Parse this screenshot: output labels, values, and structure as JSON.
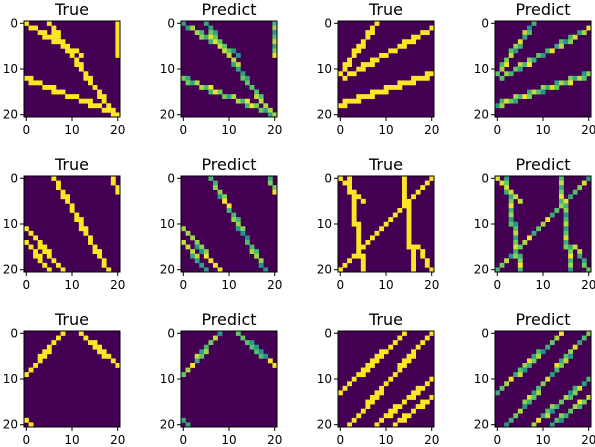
{
  "figure": {
    "colormap": "viridis",
    "colors": {
      "low": "#440154",
      "high": "#fde725"
    },
    "axis_ticks": [
      "0",
      "10",
      "20"
    ],
    "grid_size": 21,
    "panels": [
      {
        "title": "True",
        "kind": "true",
        "lines": [
          {
            "r0": 0,
            "c0": 0,
            "r1": 7,
            "c1": 12
          },
          {
            "r0": 0,
            "c0": 5,
            "r1": 18,
            "c1": 18
          },
          {
            "r0": 12,
            "c0": 0,
            "r1": 20,
            "c1": 20
          },
          {
            "r0": 0,
            "c0": 20,
            "r1": 7,
            "c1": 20
          }
        ]
      },
      {
        "title": "Predict",
        "kind": "predict",
        "lines": [
          {
            "r0": 0,
            "c0": 0,
            "r1": 7,
            "c1": 12
          },
          {
            "r0": 0,
            "c0": 5,
            "r1": 18,
            "c1": 18
          },
          {
            "r0": 12,
            "c0": 0,
            "r1": 20,
            "c1": 20
          },
          {
            "r0": 0,
            "c0": 20,
            "r1": 7,
            "c1": 20
          }
        ]
      },
      {
        "title": "True",
        "kind": "true",
        "lines": [
          {
            "r0": 0,
            "c0": 8,
            "r1": 11,
            "c1": 0
          },
          {
            "r0": 1,
            "c0": 20,
            "r1": 12,
            "c1": 1
          },
          {
            "r0": 18,
            "c0": 0,
            "r1": 11,
            "c1": 20
          }
        ]
      },
      {
        "title": "Predict",
        "kind": "predict",
        "lines": [
          {
            "r0": 0,
            "c0": 8,
            "r1": 11,
            "c1": 0
          },
          {
            "r0": 1,
            "c0": 20,
            "r1": 12,
            "c1": 1
          },
          {
            "r0": 18,
            "c0": 0,
            "r1": 11,
            "c1": 20
          }
        ]
      },
      {
        "title": "True",
        "kind": "true",
        "lines": [
          {
            "r0": 0,
            "c0": 6,
            "r1": 20,
            "c1": 18
          },
          {
            "r0": 11,
            "c0": 0,
            "r1": 20,
            "c1": 8
          },
          {
            "r0": 14,
            "c0": 0,
            "r1": 20,
            "c1": 5
          },
          {
            "r0": 0,
            "c0": 19,
            "r1": 3,
            "c1": 20
          }
        ]
      },
      {
        "title": "Predict",
        "kind": "predict",
        "lines": [
          {
            "r0": 0,
            "c0": 6,
            "r1": 20,
            "c1": 18
          },
          {
            "r0": 11,
            "c0": 0,
            "r1": 20,
            "c1": 8
          },
          {
            "r0": 14,
            "c0": 0,
            "r1": 20,
            "c1": 5
          },
          {
            "r0": 0,
            "c0": 19,
            "r1": 3,
            "c1": 20
          }
        ]
      },
      {
        "title": "True",
        "kind": "true",
        "lines": [
          {
            "r0": 0,
            "c0": 2,
            "r1": 20,
            "c1": 5
          },
          {
            "r0": 0,
            "c0": 14,
            "r1": 20,
            "c1": 16
          },
          {
            "r0": 20,
            "c0": 0,
            "r1": 0,
            "c1": 20
          },
          {
            "r0": 0,
            "c0": 0,
            "r1": 5,
            "c1": 5
          },
          {
            "r0": 15,
            "c0": 17,
            "r1": 20,
            "c1": 20
          }
        ]
      },
      {
        "title": "Predict",
        "kind": "predict",
        "lines": [
          {
            "r0": 0,
            "c0": 2,
            "r1": 20,
            "c1": 5
          },
          {
            "r0": 0,
            "c0": 14,
            "r1": 20,
            "c1": 16
          },
          {
            "r0": 20,
            "c0": 0,
            "r1": 0,
            "c1": 20
          },
          {
            "r0": 0,
            "c0": 0,
            "r1": 5,
            "c1": 5
          },
          {
            "r0": 15,
            "c0": 17,
            "r1": 20,
            "c1": 20
          }
        ]
      },
      {
        "title": "True",
        "kind": "true",
        "lines": [
          {
            "r0": 0,
            "c0": 8,
            "r1": 9,
            "c1": 0
          },
          {
            "r0": 0,
            "c0": 12,
            "r1": 7,
            "c1": 20
          },
          {
            "r0": 19,
            "c0": 0,
            "r1": 20,
            "c1": 1
          }
        ]
      },
      {
        "title": "Predict",
        "kind": "predict",
        "lines": [
          {
            "r0": 0,
            "c0": 8,
            "r1": 9,
            "c1": 0
          },
          {
            "r0": 0,
            "c0": 12,
            "r1": 7,
            "c1": 20
          },
          {
            "r0": 19,
            "c0": 0,
            "r1": 20,
            "c1": 1
          }
        ]
      },
      {
        "title": "True",
        "kind": "true",
        "lines": [
          {
            "r0": 0,
            "c0": 14,
            "r1": 13,
            "c1": 0
          },
          {
            "r0": 0,
            "c0": 20,
            "r1": 20,
            "c1": 2
          },
          {
            "r0": 10,
            "c0": 20,
            "r1": 20,
            "c1": 8
          },
          {
            "r0": 14,
            "c0": 20,
            "r1": 20,
            "c1": 12
          }
        ]
      },
      {
        "title": "Predict",
        "kind": "predict",
        "lines": [
          {
            "r0": 0,
            "c0": 14,
            "r1": 13,
            "c1": 0
          },
          {
            "r0": 0,
            "c0": 20,
            "r1": 20,
            "c1": 2
          },
          {
            "r0": 10,
            "c0": 20,
            "r1": 20,
            "c1": 8
          },
          {
            "r0": 14,
            "c0": 20,
            "r1": 20,
            "c1": 12
          }
        ]
      }
    ]
  }
}
